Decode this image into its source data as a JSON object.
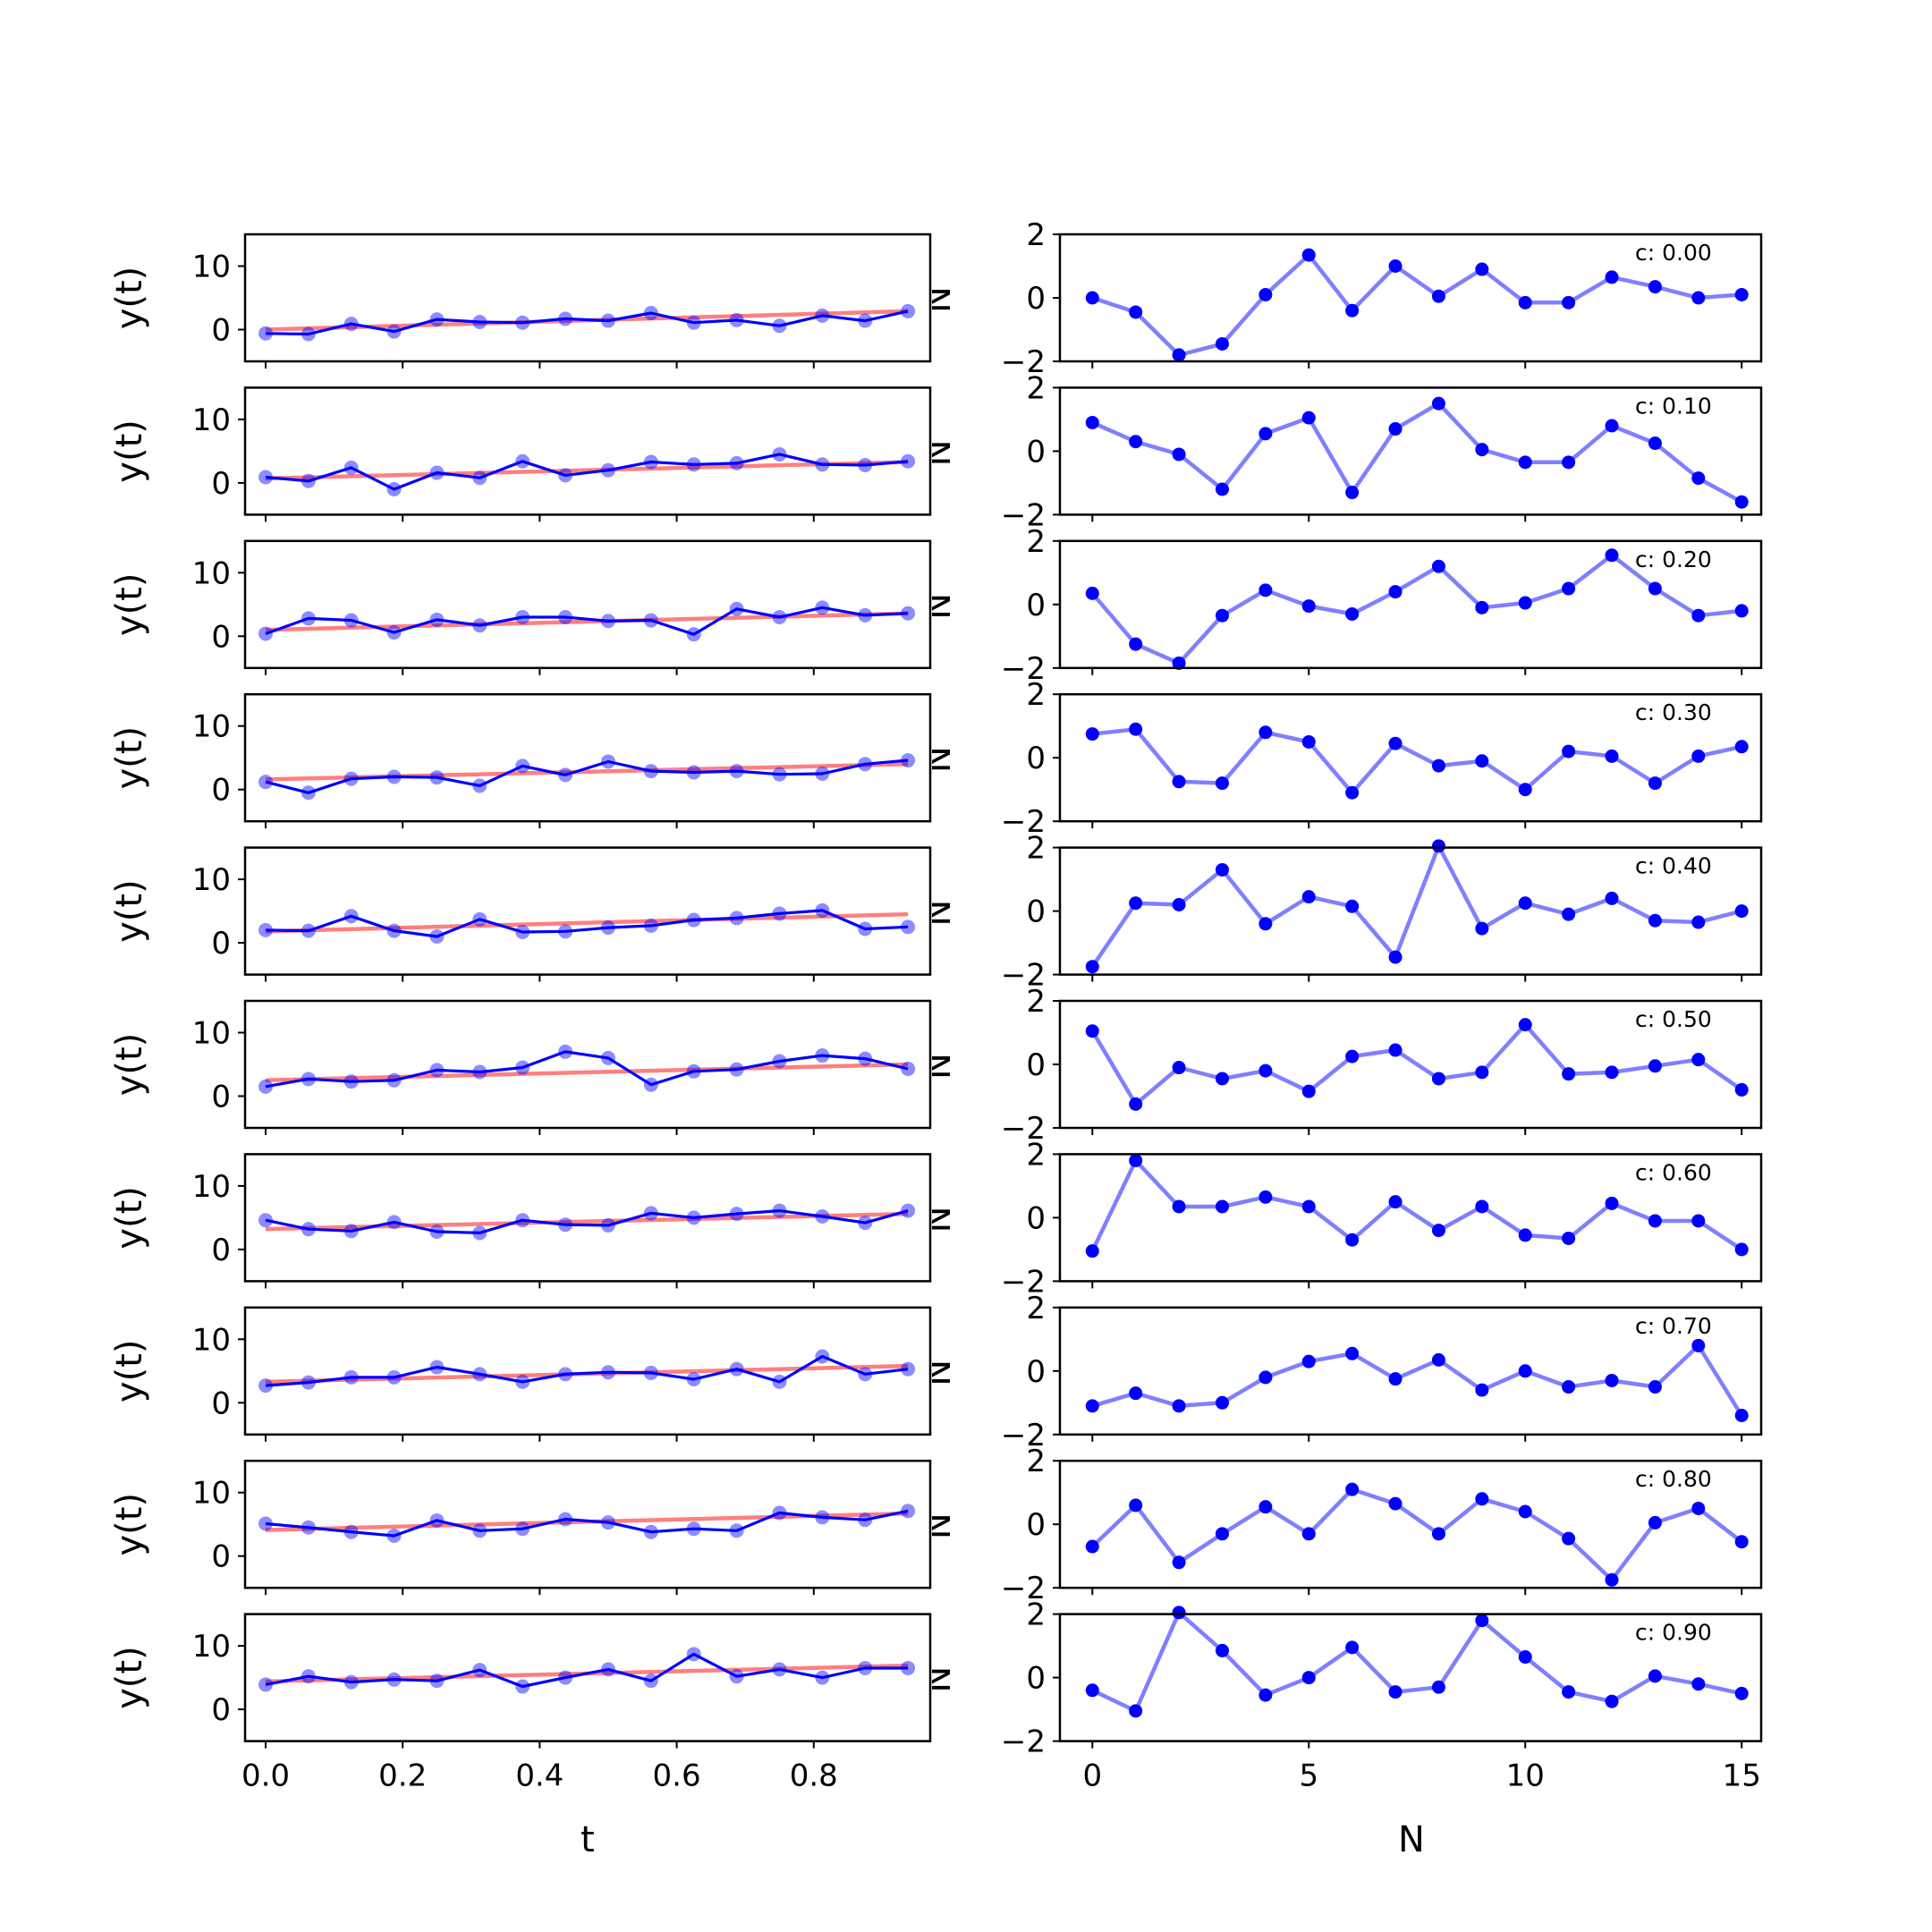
{
  "colors": {
    "noisy_line": "#0000ff",
    "fit_line": "#ff0000",
    "residual_line": "#0000ff"
  },
  "labels": {
    "left_ylabel": "y(t)",
    "left_xlabel": "t",
    "right_ylabel": "N",
    "right_xlabel": "N"
  },
  "chart_data": [
    {
      "type": "line",
      "panel": "left",
      "xlabel": "t",
      "ylabel": "y(t)",
      "xlim": [
        -0.03,
        0.97
      ],
      "ylim": [
        -5,
        15
      ],
      "xticks": [
        0.0,
        0.2,
        0.4,
        0.6,
        0.8
      ],
      "xticklabels": [
        "0.0",
        "0.2",
        "0.4",
        "0.6",
        "0.8"
      ],
      "yticks": [
        0,
        10
      ],
      "x": [
        0.0,
        0.0625,
        0.125,
        0.1875,
        0.25,
        0.3125,
        0.375,
        0.4375,
        0.5,
        0.5625,
        0.625,
        0.6875,
        0.75,
        0.8125,
        0.875,
        0.9375
      ],
      "rows": [
        {
          "observed": [
            -0.6,
            -0.7,
            0.9,
            -0.3,
            1.6,
            1.2,
            1.1,
            1.7,
            1.4,
            2.6,
            1.1,
            1.5,
            0.6,
            2.2,
            1.4,
            2.9
          ],
          "fit": [
            0.0,
            2.9
          ]
        },
        {
          "observed": [
            0.9,
            0.3,
            2.4,
            -1.0,
            1.6,
            0.8,
            3.4,
            1.2,
            2.0,
            3.3,
            2.9,
            3.1,
            4.5,
            2.9,
            2.8,
            3.4
          ],
          "fit": [
            0.7,
            3.3
          ]
        },
        {
          "observed": [
            0.4,
            2.8,
            2.5,
            0.6,
            2.6,
            1.7,
            3.0,
            3.0,
            2.4,
            2.5,
            0.3,
            4.3,
            3.0,
            4.5,
            3.3,
            3.6
          ],
          "fit": [
            1.0,
            3.6
          ]
        },
        {
          "observed": [
            1.2,
            -0.5,
            1.7,
            2.0,
            1.9,
            0.6,
            3.7,
            2.3,
            4.4,
            2.9,
            2.7,
            2.9,
            2.4,
            2.5,
            4.0,
            4.6
          ],
          "fit": [
            1.6,
            4.0
          ]
        },
        {
          "observed": [
            2.0,
            1.9,
            4.2,
            1.9,
            1.0,
            3.7,
            1.7,
            1.8,
            2.4,
            2.7,
            3.6,
            3.9,
            4.6,
            5.1,
            2.2,
            2.5
          ],
          "fit": [
            1.8,
            4.5
          ]
        },
        {
          "observed": [
            1.5,
            2.7,
            2.3,
            2.5,
            4.1,
            3.8,
            4.5,
            7.0,
            6.0,
            1.8,
            3.9,
            4.2,
            5.5,
            6.4,
            5.9,
            4.3
          ],
          "fit": [
            2.5,
            5.0
          ]
        },
        {
          "observed": [
            4.6,
            3.2,
            2.9,
            4.3,
            2.8,
            2.6,
            4.6,
            3.9,
            3.8,
            5.7,
            5.0,
            5.6,
            6.1,
            5.2,
            4.2,
            6.1
          ],
          "fit": [
            3.2,
            5.6
          ]
        },
        {
          "observed": [
            2.7,
            3.2,
            4.0,
            4.0,
            5.6,
            4.5,
            3.3,
            4.5,
            4.8,
            4.7,
            3.7,
            5.3,
            3.3,
            7.3,
            4.5,
            5.3
          ],
          "fit": [
            3.3,
            5.8
          ]
        },
        {
          "observed": [
            5.1,
            4.5,
            3.8,
            3.2,
            5.6,
            4.0,
            4.3,
            5.8,
            5.3,
            3.8,
            4.3,
            4.0,
            6.8,
            6.1,
            5.7,
            7.1
          ],
          "fit": [
            4.1,
            6.7
          ]
        },
        {
          "observed": [
            3.9,
            5.2,
            4.3,
            4.7,
            4.5,
            6.2,
            3.6,
            5.0,
            6.3,
            4.5,
            8.7,
            5.2,
            6.3,
            5.0,
            6.5,
            6.5
          ],
          "fit": [
            4.4,
            6.9
          ]
        }
      ]
    },
    {
      "type": "line",
      "panel": "right",
      "xlabel": "N",
      "ylabel": "N",
      "xlim": [
        -0.75,
        15.45
      ],
      "ylim": [
        -2,
        2
      ],
      "xticks": [
        0,
        5,
        10,
        15
      ],
      "yticks": [
        -2,
        0,
        2
      ],
      "yticklabels": [
        "−2",
        "0",
        "2"
      ],
      "x": [
        0,
        1,
        2,
        3,
        4,
        5,
        6,
        7,
        8,
        9,
        10,
        11,
        12,
        13,
        14,
        15
      ],
      "rows": [
        {
          "c_label": "c: 0.00",
          "values": [
            0.0,
            -0.45,
            -1.8,
            -1.45,
            0.1,
            1.35,
            -0.4,
            1.0,
            0.05,
            0.9,
            -0.15,
            -0.15,
            0.65,
            0.35,
            0.0,
            0.1
          ]
        },
        {
          "c_label": "c: 0.10",
          "values": [
            0.9,
            0.3,
            -0.1,
            -1.2,
            0.55,
            1.05,
            -1.3,
            0.7,
            1.5,
            0.05,
            -0.35,
            -0.35,
            0.8,
            0.25,
            -0.85,
            -1.6
          ]
        },
        {
          "c_label": "c: 0.20",
          "values": [
            0.35,
            -1.25,
            -1.85,
            -0.35,
            0.45,
            -0.05,
            -0.3,
            0.4,
            1.2,
            -0.1,
            0.05,
            0.5,
            1.55,
            0.5,
            -0.35,
            -0.2
          ]
        },
        {
          "c_label": "c: 0.30",
          "values": [
            0.75,
            0.9,
            -0.75,
            -0.8,
            0.8,
            0.5,
            -1.1,
            0.45,
            -0.25,
            -0.1,
            -1.0,
            0.2,
            0.05,
            -0.8,
            0.05,
            0.35
          ]
        },
        {
          "c_label": "c: 0.40",
          "values": [
            -1.75,
            0.25,
            0.2,
            1.3,
            -0.4,
            0.45,
            0.15,
            -1.45,
            2.05,
            -0.55,
            0.25,
            -0.1,
            0.4,
            -0.3,
            -0.35,
            0.0
          ]
        },
        {
          "c_label": "c: 0.50",
          "values": [
            1.05,
            -1.25,
            -0.1,
            -0.45,
            -0.2,
            -0.85,
            0.25,
            0.45,
            -0.45,
            -0.25,
            1.25,
            -0.3,
            -0.25,
            -0.05,
            0.15,
            -0.8
          ]
        },
        {
          "c_label": "c: 0.60",
          "values": [
            -1.05,
            1.8,
            0.35,
            0.35,
            0.65,
            0.35,
            -0.7,
            0.5,
            -0.4,
            0.35,
            -0.55,
            -0.65,
            0.45,
            -0.1,
            -0.1,
            -1.0
          ]
        },
        {
          "c_label": "c: 0.70",
          "values": [
            -1.1,
            -0.7,
            -1.1,
            -1.0,
            -0.2,
            0.3,
            0.55,
            -0.25,
            0.35,
            -0.6,
            0.0,
            -0.5,
            -0.3,
            -0.5,
            0.8,
            -1.4
          ]
        },
        {
          "c_label": "c: 0.80",
          "values": [
            -0.7,
            0.6,
            -1.2,
            -0.3,
            0.55,
            -0.3,
            1.1,
            0.65,
            -0.3,
            0.8,
            0.4,
            -0.45,
            -1.75,
            0.05,
            0.5,
            -0.55
          ]
        },
        {
          "c_label": "c: 0.90",
          "values": [
            -0.4,
            -1.05,
            2.05,
            0.85,
            -0.55,
            0.0,
            0.95,
            -0.45,
            -0.3,
            1.8,
            0.65,
            -0.45,
            -0.75,
            0.05,
            -0.2,
            -0.5
          ]
        }
      ]
    }
  ]
}
